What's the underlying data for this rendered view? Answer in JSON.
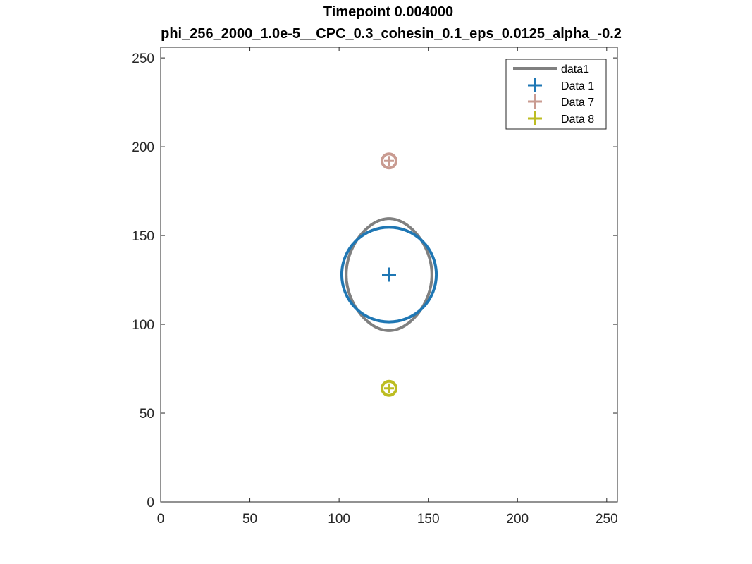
{
  "chart_data": {
    "type": "scatter",
    "title": "Timepoint 0.004000",
    "subtitle": "phi_256_2000_1.0e-5__CPC_0.3_cohesin_0.1_eps_0.0125_alpha_-0.2",
    "xlabel": "",
    "ylabel": "",
    "xlim": [
      0,
      256
    ],
    "ylim": [
      0,
      256
    ],
    "xticks": [
      0,
      50,
      100,
      150,
      200,
      250
    ],
    "yticks": [
      0,
      50,
      100,
      150,
      200,
      250
    ],
    "grid": false,
    "legend_position": "top-right",
    "series": [
      {
        "name": "data1",
        "kind": "line",
        "shape": "ellipse",
        "center": [
          128,
          128
        ],
        "radius_x": 24,
        "radius_y": 31.5,
        "color": "#808080"
      },
      {
        "name": "Data 1",
        "kind": "marker",
        "marker": "+",
        "points": [
          [
            128,
            128
          ]
        ],
        "circle_radius": 26.5,
        "color": "#1f77b4"
      },
      {
        "name": "Data 7",
        "kind": "marker",
        "marker": "+",
        "points": [
          [
            128,
            192
          ]
        ],
        "circle_radius": 3.5,
        "color": "#c99b91"
      },
      {
        "name": "Data 8",
        "kind": "marker",
        "marker": "+",
        "points": [
          [
            128,
            64
          ]
        ],
        "circle_radius": 3.5,
        "color": "#bdbd22"
      }
    ]
  }
}
